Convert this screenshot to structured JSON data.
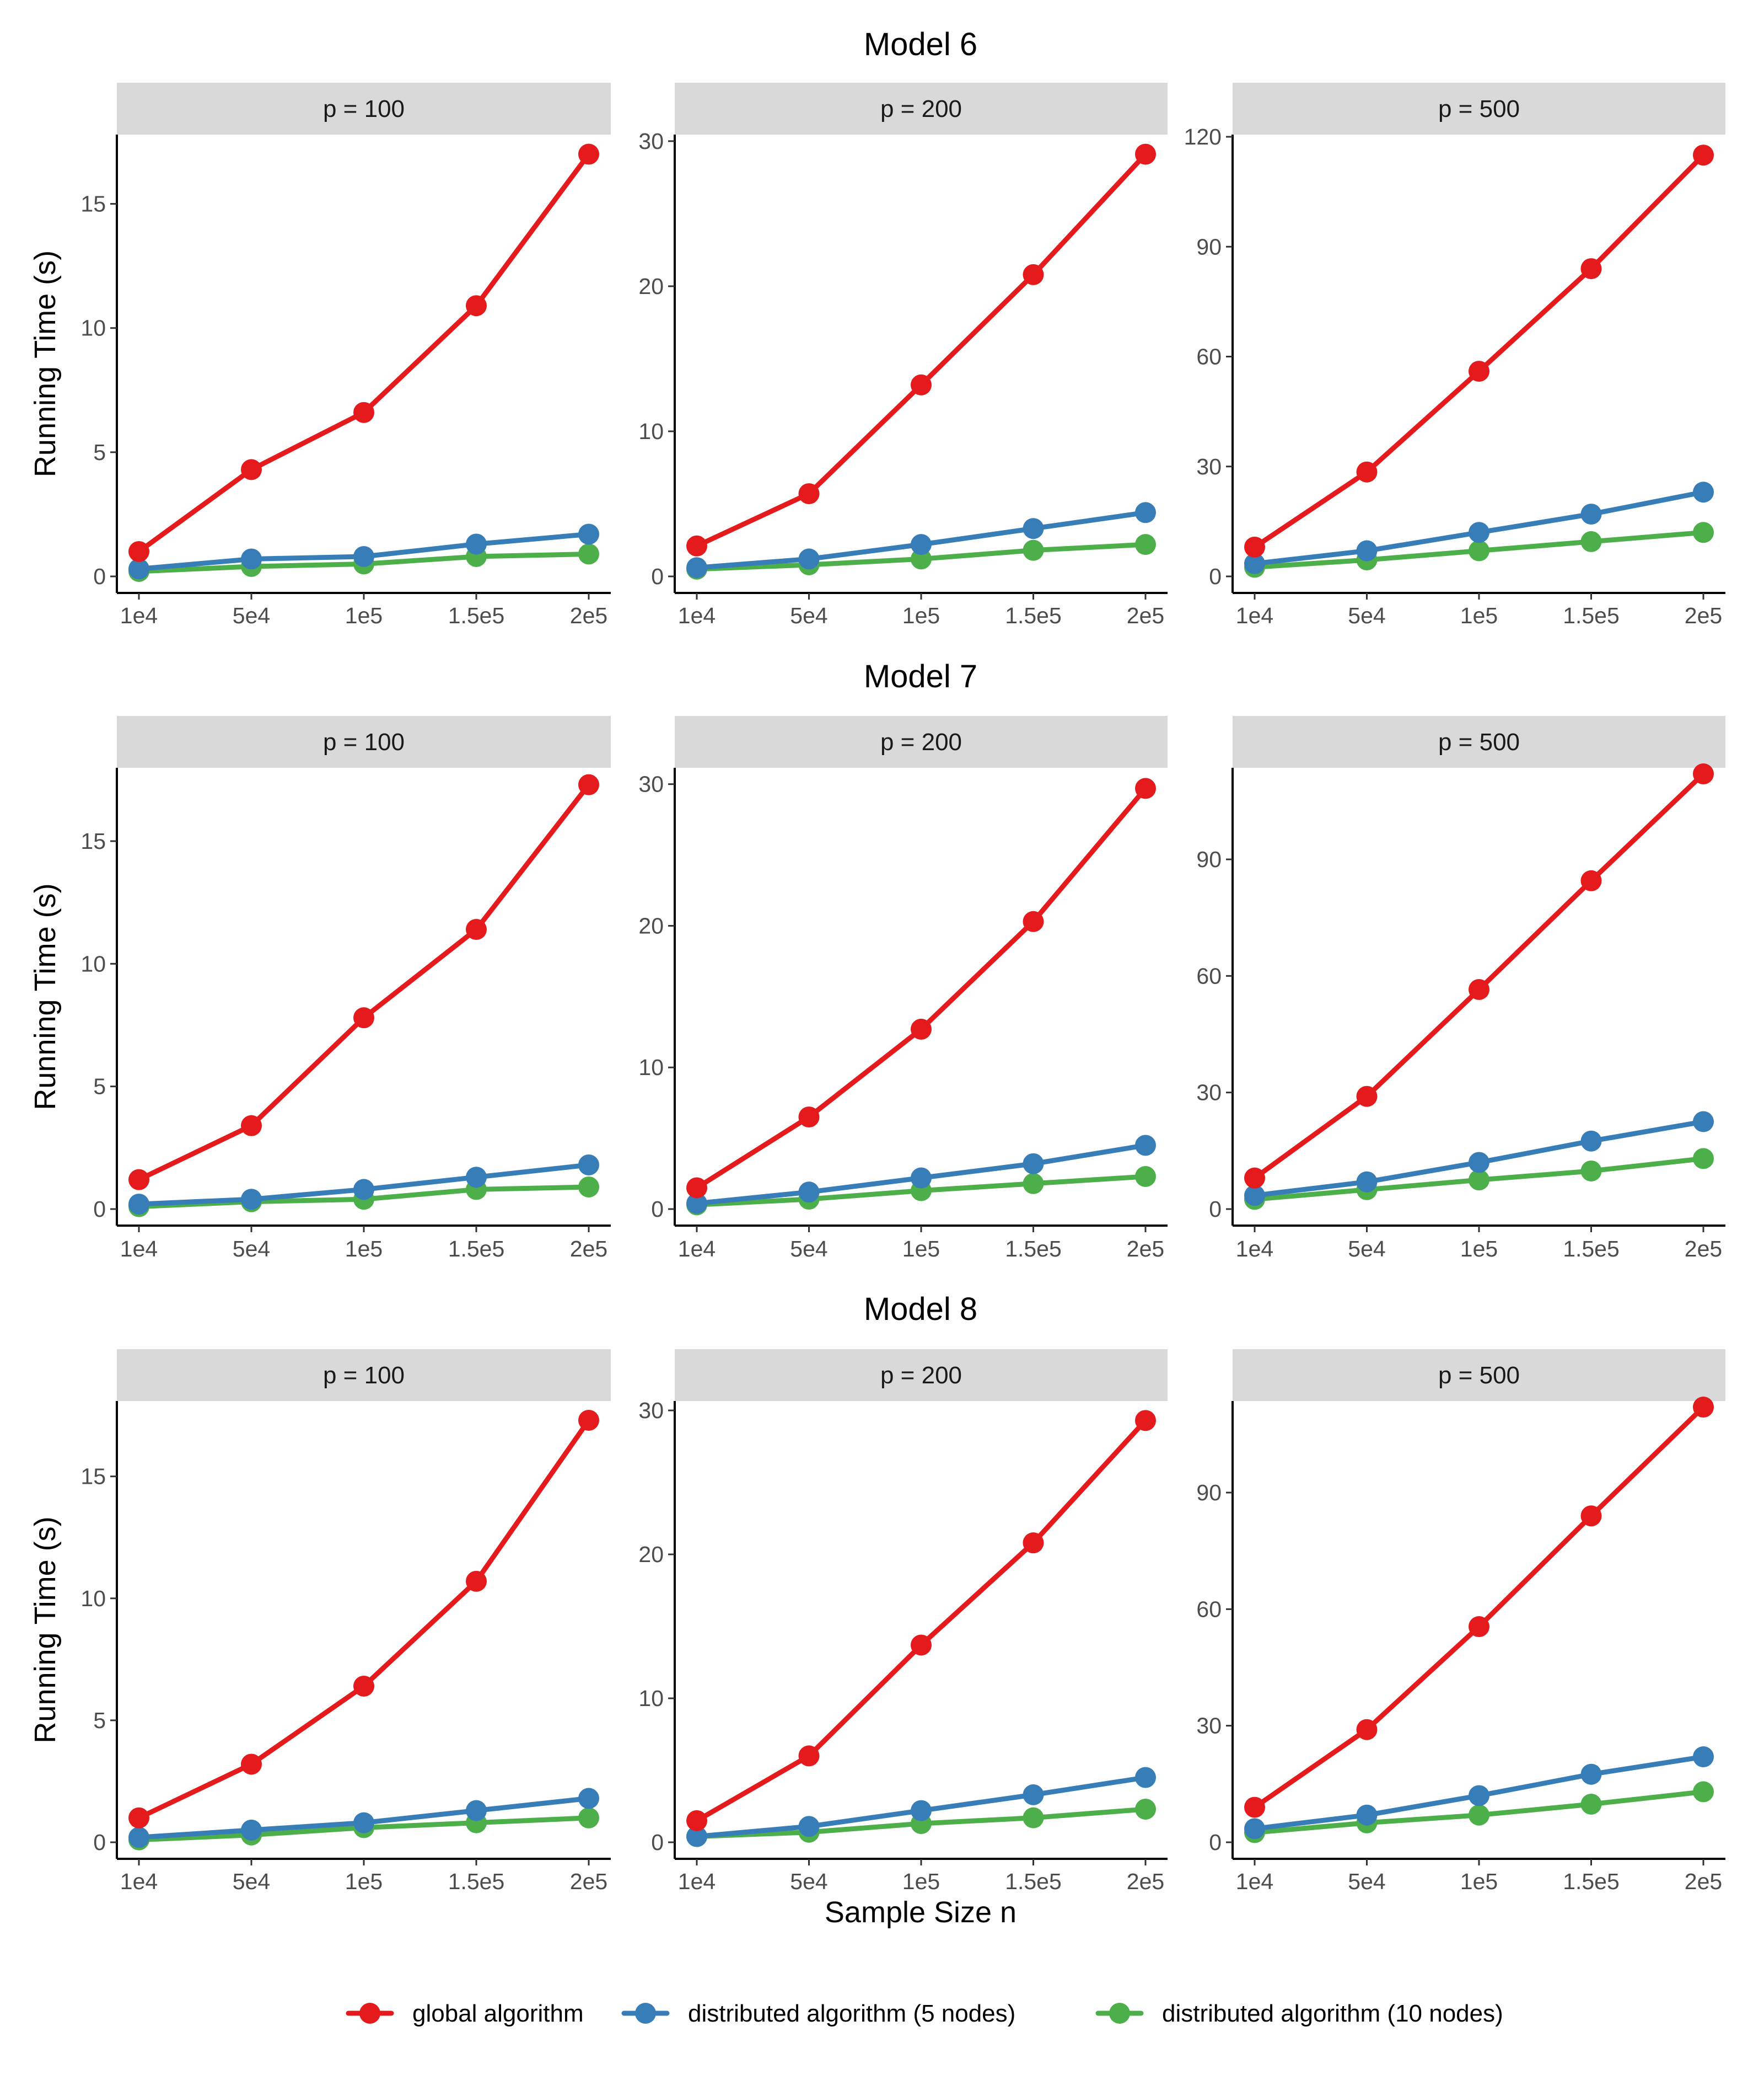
{
  "chart_data": {
    "type": "line",
    "xlabel": "Sample Size n",
    "ylabel": "Running Time (s)",
    "x": [
      "1e4",
      "5e4",
      "1e5",
      "1.5e5",
      "2e5"
    ],
    "legend": [
      {
        "name": "global algorithm",
        "color": "#e41a1c"
      },
      {
        "name": "distributed algorithm (5 nodes)",
        "color": "#377eb8"
      },
      {
        "name": "distributed algorithm (10 nodes)",
        "color": "#4daf4a"
      }
    ],
    "rows": [
      {
        "title": "Model 6",
        "panels": [
          {
            "label": "p = 100",
            "ylim": [
              0,
              17.7
            ],
            "yticks": [
              0,
              5,
              10,
              15
            ],
            "series": [
              {
                "name": "global algorithm",
                "values": [
                  1.0,
                  4.3,
                  6.6,
                  10.9,
                  17.0
                ]
              },
              {
                "name": "distributed algorithm (5 nodes)",
                "values": [
                  0.3,
                  0.7,
                  0.8,
                  1.3,
                  1.7
                ]
              },
              {
                "name": "distributed algorithm (10 nodes)",
                "values": [
                  0.2,
                  0.4,
                  0.5,
                  0.8,
                  0.9
                ]
              }
            ]
          },
          {
            "label": "p = 200",
            "ylim": [
              0,
              30.3
            ],
            "yticks": [
              0,
              10,
              20,
              30
            ],
            "series": [
              {
                "name": "global algorithm",
                "values": [
                  2.1,
                  5.7,
                  13.2,
                  20.8,
                  29.1
                ]
              },
              {
                "name": "distributed algorithm (5 nodes)",
                "values": [
                  0.6,
                  1.2,
                  2.2,
                  3.3,
                  4.4
                ]
              },
              {
                "name": "distributed algorithm (10 nodes)",
                "values": [
                  0.5,
                  0.8,
                  1.2,
                  1.8,
                  2.2
                ]
              }
            ]
          },
          {
            "label": "p = 500",
            "ylim": [
              0,
              120
            ],
            "yticks": [
              0,
              30,
              60,
              90,
              120
            ],
            "series": [
              {
                "name": "global algorithm",
                "values": [
                  8,
                  28.5,
                  56,
                  84,
                  115
                ]
              },
              {
                "name": "distributed algorithm (5 nodes)",
                "values": [
                  3.5,
                  7,
                  12,
                  17,
                  23
                ]
              },
              {
                "name": "distributed algorithm (10 nodes)",
                "values": [
                  2.5,
                  4.5,
                  7,
                  9.5,
                  12
                ]
              }
            ]
          }
        ]
      },
      {
        "title": "Model 7",
        "panels": [
          {
            "label": "p = 100",
            "ylim": [
              0,
              17.9
            ],
            "yticks": [
              0,
              5,
              10,
              15
            ],
            "series": [
              {
                "name": "global algorithm",
                "values": [
                  1.2,
                  3.4,
                  7.8,
                  11.4,
                  17.3
                ]
              },
              {
                "name": "distributed algorithm (5 nodes)",
                "values": [
                  0.2,
                  0.4,
                  0.8,
                  1.3,
                  1.8
                ]
              },
              {
                "name": "distributed algorithm (10 nodes)",
                "values": [
                  0.1,
                  0.3,
                  0.4,
                  0.8,
                  0.9
                ]
              }
            ]
          },
          {
            "label": "p = 200",
            "ylim": [
              0,
              31
            ],
            "yticks": [
              0,
              10,
              20,
              30
            ],
            "series": [
              {
                "name": "global algorithm",
                "values": [
                  1.5,
                  6.5,
                  12.7,
                  20.3,
                  29.7
                ]
              },
              {
                "name": "distributed algorithm (5 nodes)",
                "values": [
                  0.4,
                  1.2,
                  2.2,
                  3.2,
                  4.5
                ]
              },
              {
                "name": "distributed algorithm (10 nodes)",
                "values": [
                  0.3,
                  0.7,
                  1.3,
                  1.8,
                  2.3
                ]
              }
            ]
          },
          {
            "label": "p = 500",
            "ylim": [
              0,
              113
            ],
            "yticks": [
              0,
              30,
              60,
              90
            ],
            "series": [
              {
                "name": "global algorithm",
                "values": [
                  8,
                  29,
                  56.5,
                  84.5,
                  112
                ]
              },
              {
                "name": "distributed algorithm (5 nodes)",
                "values": [
                  3.5,
                  7,
                  12,
                  17.5,
                  22.5
                ]
              },
              {
                "name": "distributed algorithm (10 nodes)",
                "values": [
                  2.5,
                  5,
                  7.5,
                  9.8,
                  13
                ]
              }
            ]
          }
        ]
      },
      {
        "title": "Model 8",
        "panels": [
          {
            "label": "p = 100",
            "ylim": [
              0,
              18
            ],
            "yticks": [
              0,
              5,
              10,
              15
            ],
            "series": [
              {
                "name": "global algorithm",
                "values": [
                  1.0,
                  3.2,
                  6.4,
                  10.7,
                  17.3
                ]
              },
              {
                "name": "distributed algorithm (5 nodes)",
                "values": [
                  0.2,
                  0.5,
                  0.8,
                  1.3,
                  1.8
                ]
              },
              {
                "name": "distributed algorithm (10 nodes)",
                "values": [
                  0.1,
                  0.3,
                  0.6,
                  0.8,
                  1.0
                ]
              }
            ]
          },
          {
            "label": "p = 200",
            "ylim": [
              0,
              30.5
            ],
            "yticks": [
              0,
              10,
              20,
              30
            ],
            "series": [
              {
                "name": "global algorithm",
                "values": [
                  1.5,
                  6.0,
                  13.7,
                  20.8,
                  29.3
                ]
              },
              {
                "name": "distributed algorithm (5 nodes)",
                "values": [
                  0.4,
                  1.1,
                  2.2,
                  3.3,
                  4.5
                ]
              },
              {
                "name": "distributed algorithm (10 nodes)",
                "values": [
                  0.4,
                  0.7,
                  1.3,
                  1.7,
                  2.3
                ]
              }
            ]
          },
          {
            "label": "p = 500",
            "ylim": [
              0,
              113
            ],
            "yticks": [
              0,
              30,
              60,
              90
            ],
            "series": [
              {
                "name": "global algorithm",
                "values": [
                  9,
                  29,
                  55.5,
                  84,
                  112
                ]
              },
              {
                "name": "distributed algorithm (5 nodes)",
                "values": [
                  3.5,
                  7,
                  12,
                  17.5,
                  22
                ]
              },
              {
                "name": "distributed algorithm (10 nodes)",
                "values": [
                  2.5,
                  5,
                  7,
                  9.8,
                  13
                ]
              }
            ]
          }
        ]
      }
    ]
  }
}
